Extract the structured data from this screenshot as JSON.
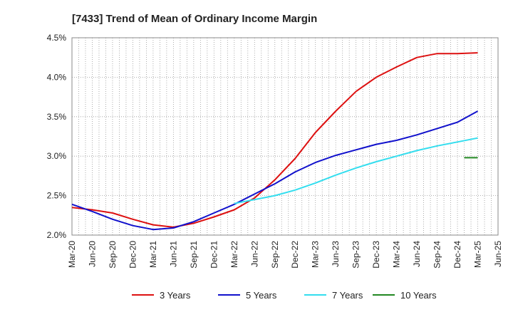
{
  "chart_data": {
    "type": "line",
    "title": "[7433]  Trend of Mean of Ordinary Income Margin",
    "xlabel": "",
    "ylabel": "",
    "x_range": [
      "2020-03",
      "2025-06"
    ],
    "x_tick_labels": [
      "Mar-20",
      "Jun-20",
      "Sep-20",
      "Dec-20",
      "Mar-21",
      "Jun-21",
      "Sep-21",
      "Dec-21",
      "Mar-22",
      "Jun-22",
      "Sep-22",
      "Dec-22",
      "Mar-23",
      "Jun-23",
      "Sep-23",
      "Dec-23",
      "Mar-24",
      "Jun-24",
      "Sep-24",
      "Dec-24",
      "Mar-25",
      "Jun-25"
    ],
    "ylim": [
      2.0,
      4.5
    ],
    "y_ticks": [
      2.0,
      2.5,
      3.0,
      3.5,
      4.0,
      4.5
    ],
    "y_tick_labels": [
      "2.0%",
      "2.5%",
      "3.0%",
      "3.5%",
      "4.0%",
      "4.5%"
    ],
    "grid": "on, dotted gray, monthly vertical lines and horizontal at each y tick",
    "legend_position": "bottom",
    "series": [
      {
        "name": "3 Years",
        "color": "#dd1111",
        "points": [
          [
            "2020-03",
            2.35
          ],
          [
            "2020-06",
            2.32
          ],
          [
            "2020-09",
            2.28
          ],
          [
            "2020-12",
            2.2
          ],
          [
            "2021-03",
            2.13
          ],
          [
            "2021-06",
            2.1
          ],
          [
            "2021-09",
            2.15
          ],
          [
            "2021-12",
            2.23
          ],
          [
            "2022-03",
            2.32
          ],
          [
            "2022-06",
            2.47
          ],
          [
            "2022-09",
            2.7
          ],
          [
            "2022-12",
            2.97
          ],
          [
            "2023-03",
            3.3
          ],
          [
            "2023-06",
            3.57
          ],
          [
            "2023-09",
            3.82
          ],
          [
            "2023-12",
            4.0
          ],
          [
            "2024-03",
            4.13
          ],
          [
            "2024-06",
            4.25
          ],
          [
            "2024-09",
            4.3
          ],
          [
            "2024-12",
            4.3
          ],
          [
            "2025-03",
            4.31
          ]
        ]
      },
      {
        "name": "5 Years",
        "color": "#1111cc",
        "points": [
          [
            "2020-03",
            2.39
          ],
          [
            "2020-06",
            2.3
          ],
          [
            "2020-09",
            2.2
          ],
          [
            "2020-12",
            2.12
          ],
          [
            "2021-03",
            2.07
          ],
          [
            "2021-06",
            2.09
          ],
          [
            "2021-09",
            2.17
          ],
          [
            "2021-12",
            2.28
          ],
          [
            "2022-03",
            2.39
          ],
          [
            "2022-06",
            2.52
          ],
          [
            "2022-09",
            2.65
          ],
          [
            "2022-12",
            2.8
          ],
          [
            "2023-03",
            2.92
          ],
          [
            "2023-06",
            3.01
          ],
          [
            "2023-09",
            3.08
          ],
          [
            "2023-12",
            3.15
          ],
          [
            "2024-03",
            3.2
          ],
          [
            "2024-06",
            3.27
          ],
          [
            "2024-09",
            3.35
          ],
          [
            "2024-12",
            3.43
          ],
          [
            "2025-03",
            3.57
          ]
        ]
      },
      {
        "name": "7 Years",
        "color": "#33ddee",
        "points": [
          [
            "2022-03",
            2.4
          ],
          [
            "2022-06",
            2.45
          ],
          [
            "2022-09",
            2.5
          ],
          [
            "2022-12",
            2.57
          ],
          [
            "2023-03",
            2.66
          ],
          [
            "2023-06",
            2.76
          ],
          [
            "2023-09",
            2.85
          ],
          [
            "2023-12",
            2.93
          ],
          [
            "2024-03",
            3.0
          ],
          [
            "2024-06",
            3.07
          ],
          [
            "2024-09",
            3.13
          ],
          [
            "2024-12",
            3.18
          ],
          [
            "2025-03",
            3.23
          ]
        ]
      },
      {
        "name": "10 Years",
        "color": "#228822",
        "points": [
          [
            "2025-01",
            2.98
          ],
          [
            "2025-03",
            2.98
          ]
        ]
      }
    ]
  }
}
